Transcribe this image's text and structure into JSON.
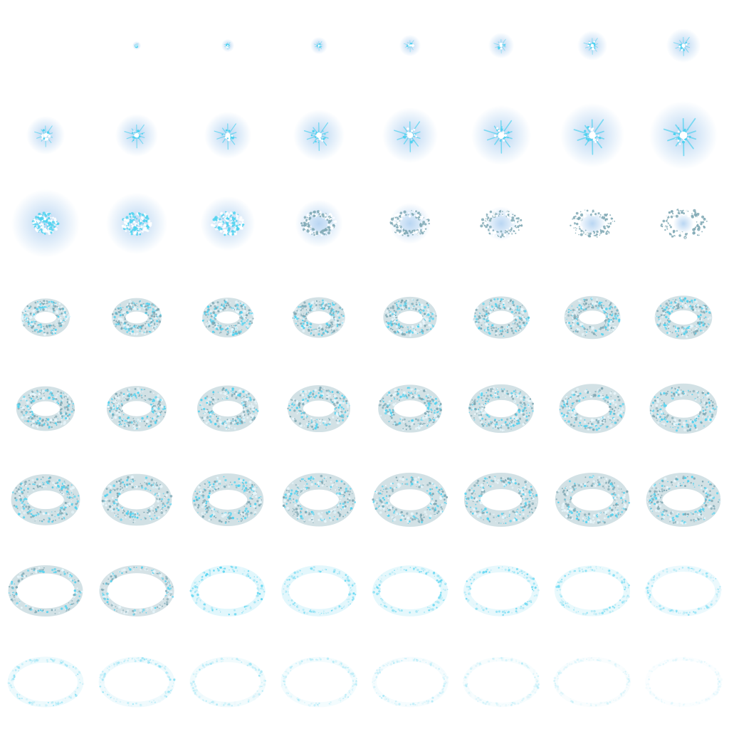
{
  "sprite_sheet": {
    "effect": "ice ring burst",
    "grid": {
      "columns": 8,
      "rows": 8
    },
    "frame_count": 64,
    "background": "#ffffff",
    "colors": {
      "spark_core": "#ffffff",
      "spark_cyan": "#4fd2f0",
      "glow_blue": "#7fb4e8",
      "ring_teal": "#7fa8b4",
      "ring_highlight": "#e8f6fb",
      "ring_fade_cyan": "#9fe4f4"
    },
    "phases": [
      {
        "name": "spark-flare",
        "frames": [
          0,
          15
        ]
      },
      {
        "name": "condense",
        "frames": [
          16,
          23
        ]
      },
      {
        "name": "ring-expand",
        "frames": [
          24,
          47
        ]
      },
      {
        "name": "ring-dissipate",
        "frames": [
          48,
          63
        ]
      }
    ]
  }
}
